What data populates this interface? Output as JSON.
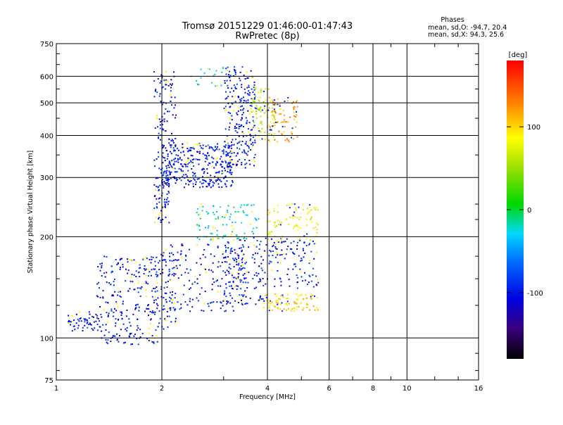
{
  "chart_data": {
    "type": "scatter",
    "title": "Tromsø 20151229 01:46:00-01:47:43",
    "subtitle": "RwPretec (8p)",
    "xlabel": "Frequency [MHz]",
    "ylabel": "Stationary phase Virtual Height [km]",
    "x_scale": "log",
    "y_scale": "log",
    "xlim": [
      1,
      16
    ],
    "ylim": [
      75,
      750
    ],
    "grid": true,
    "x_ticks": [
      "1",
      "2",
      "4",
      "6",
      "8",
      "10",
      "16"
    ],
    "y_ticks": [
      "75",
      "100",
      "200",
      "300",
      "400",
      "500",
      "600",
      "750"
    ],
    "phase_box": {
      "heading": "Phases",
      "line_o": "mean, sd,O: -94.7, 20.4",
      "line_x": "mean, sd,X:  94.3, 25.6"
    },
    "colorbar": {
      "label": "[deg]",
      "range": [
        -180,
        180
      ],
      "ticks": [
        "100",
        "0",
        "-100"
      ]
    },
    "clusters": [
      {
        "f": [
          1.08,
          1.35
        ],
        "h": [
          105,
          120
        ],
        "phase": -100,
        "n": 60
      },
      {
        "f": [
          1.3,
          1.95
        ],
        "h": [
          95,
          175
        ],
        "phase": -100,
        "n": 260
      },
      {
        "f": [
          1.9,
          2.2
        ],
        "h": [
          105,
          180
        ],
        "phase": -100,
        "n": 80
      },
      {
        "f": [
          2.0,
          3.5
        ],
        "h": [
          120,
          190
        ],
        "phase": -100,
        "n": 200
      },
      {
        "f": [
          3.0,
          4.0
        ],
        "h": [
          125,
          200
        ],
        "phase": -100,
        "n": 140
      },
      {
        "f": [
          2.5,
          3.8
        ],
        "h": [
          195,
          250
        ],
        "phase": -20,
        "n": 100
      },
      {
        "f": [
          3.9,
          5.6
        ],
        "h": [
          120,
          135
        ],
        "phase": 100,
        "n": 90
      },
      {
        "f": [
          4.0,
          5.6
        ],
        "h": [
          140,
          200
        ],
        "phase": -100,
        "n": 110
      },
      {
        "f": [
          4.0,
          5.6
        ],
        "h": [
          195,
          250
        ],
        "phase": 80,
        "n": 90
      },
      {
        "f": [
          1.9,
          2.1
        ],
        "h": [
          220,
          300
        ],
        "phase": -100,
        "n": 60
      },
      {
        "f": [
          1.9,
          2.2
        ],
        "h": [
          300,
          620
        ],
        "phase": -100,
        "n": 110
      },
      {
        "f": [
          2.0,
          3.2
        ],
        "h": [
          280,
          380
        ],
        "phase": -100,
        "n": 360
      },
      {
        "f": [
          3.0,
          3.7
        ],
        "h": [
          320,
          640
        ],
        "phase": -100,
        "n": 260
      },
      {
        "f": [
          3.6,
          4.2
        ],
        "h": [
          380,
          560
        ],
        "phase": 60,
        "n": 90
      },
      {
        "f": [
          4.0,
          4.9
        ],
        "h": [
          380,
          520
        ],
        "phase": 120,
        "n": 80
      },
      {
        "f": [
          2.4,
          3.0
        ],
        "h": [
          560,
          640
        ],
        "phase": -20,
        "n": 20
      }
    ]
  }
}
